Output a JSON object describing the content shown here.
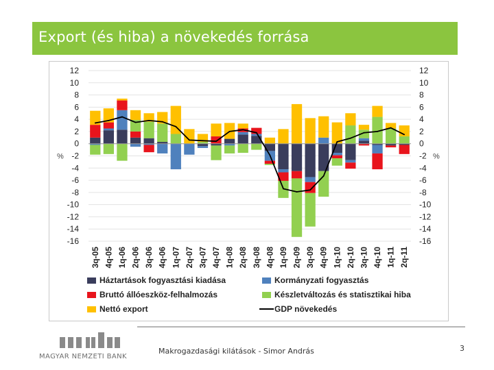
{
  "slide": {
    "title": "Export (és hiba) a növekedés forrása",
    "footer_text": "Makrogazdasági kilátások - Simor András",
    "page_number": "3",
    "logo_text": "MAGYAR NEMZETI BANK"
  },
  "chart_data": {
    "type": "bar",
    "stacked": true,
    "ylim": [
      -16,
      12
    ],
    "yticks": [
      12,
      10,
      8,
      6,
      4,
      2,
      0,
      -2,
      -4,
      -6,
      -8,
      -10,
      -12,
      -14,
      -16
    ],
    "left_axis_unit": "%",
    "right_axis_unit": "%",
    "categories": [
      "3q-05",
      "4q-05",
      "1q-06",
      "2q-06",
      "3q-06",
      "4q-06",
      "1q-07",
      "2q-07",
      "3q-07",
      "4q-07",
      "1q-08",
      "2q-08",
      "3q-08",
      "4q-08",
      "1q-09",
      "2q-09",
      "3q-09",
      "4q-09",
      "1q-10",
      "2q-10",
      "3q-10",
      "4q-10",
      "1q-11",
      "2q-11"
    ],
    "colors": {
      "households": "#3a3d5c",
      "government": "#4f81bd",
      "gfcf": "#e8141c",
      "inventory": "#92d050",
      "netexport": "#ffc000",
      "gdp": "#000000"
    },
    "series": [
      {
        "name": "Háztartások fogyasztási kiadása",
        "key": "households",
        "values": [
          1.0,
          2.2,
          2.3,
          1.0,
          0.9,
          0.3,
          0.0,
          0.0,
          -0.4,
          -0.3,
          0.8,
          1.5,
          1.3,
          -1.2,
          -4.2,
          -4.5,
          -5.5,
          -4.5,
          -1.5,
          -2.7,
          0.5,
          -0.2,
          -0.3,
          -0.2
        ]
      },
      {
        "name": "Kormányzati fogyasztás",
        "key": "government",
        "values": [
          -0.2,
          0.3,
          3.2,
          -0.5,
          -0.2,
          -1.6,
          -4.2,
          -1.8,
          -0.3,
          0.0,
          -0.3,
          0.4,
          0.3,
          -1.6,
          -0.5,
          0.0,
          -0.8,
          1.0,
          -0.4,
          -0.4,
          0.4,
          -1.4,
          0.0,
          0.0
        ]
      },
      {
        "name": "Bruttó állóeszköz-felhalmozás",
        "key": "gfcf",
        "values": [
          2.1,
          1.0,
          1.6,
          1.0,
          -1.2,
          0.0,
          0.0,
          0.0,
          0.0,
          1.2,
          0.0,
          0.6,
          1.0,
          -0.5,
          -1.4,
          -1.2,
          -1.8,
          0.0,
          -0.5,
          -1.0,
          -0.3,
          -2.6,
          -0.3,
          -1.5
        ]
      },
      {
        "name": "Készletváltozás és statisztikai hiba",
        "key": "inventory",
        "values": [
          -1.6,
          -1.7,
          -2.8,
          1.9,
          2.7,
          3.0,
          1.6,
          0.0,
          0.3,
          -2.4,
          -1.3,
          -1.5,
          -1.0,
          -0.2,
          -2.8,
          -9.6,
          -5.5,
          -4.2,
          -1.2,
          3.0,
          1.4,
          4.4,
          2.5,
          1.2
        ]
      },
      {
        "name": "Nettó export",
        "key": "netexport",
        "values": [
          2.3,
          2.3,
          0.3,
          1.6,
          1.4,
          1.9,
          4.6,
          2.4,
          1.3,
          2.1,
          2.6,
          0.8,
          0.0,
          1.0,
          2.4,
          6.5,
          4.2,
          3.5,
          3.5,
          2.0,
          0.8,
          1.8,
          0.9,
          1.8
        ]
      }
    ],
    "line": {
      "name": "GDP növekedés",
      "key": "gdp",
      "values": [
        3.4,
        3.8,
        4.4,
        3.5,
        3.8,
        3.6,
        2.8,
        0.6,
        0.5,
        0.4,
        2.0,
        2.3,
        1.8,
        -1.9,
        -7.4,
        -7.9,
        -7.6,
        -5.3,
        0.3,
        0.9,
        1.8,
        2.0,
        2.6,
        1.5
      ]
    },
    "legend": [
      {
        "label": "Háztartások fogyasztási kiadása",
        "key": "households",
        "kind": "bar"
      },
      {
        "label": "Kormányzati fogyasztás",
        "key": "government",
        "kind": "bar"
      },
      {
        "label": "Bruttó állóeszköz-felhalmozás",
        "key": "gfcf",
        "kind": "bar"
      },
      {
        "label": "Készletváltozás és statisztikai hiba",
        "key": "inventory",
        "kind": "bar"
      },
      {
        "label": "Nettó export",
        "key": "netexport",
        "kind": "bar"
      },
      {
        "label": "GDP növekedés",
        "key": "gdp",
        "kind": "line"
      }
    ]
  }
}
